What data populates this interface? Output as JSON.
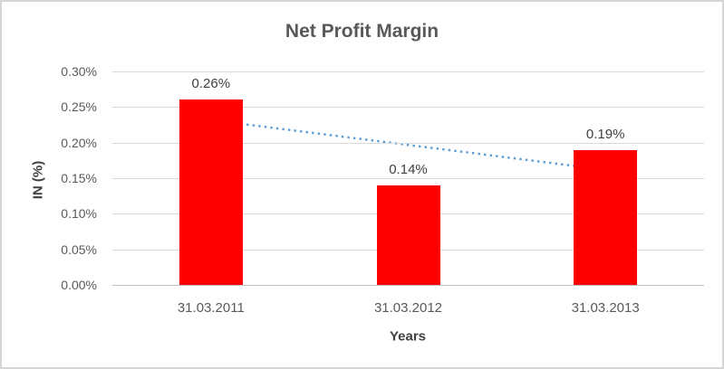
{
  "chart_data": {
    "type": "bar",
    "title": "Net Profit Margin",
    "xlabel": "Years",
    "ylabel": "IN (%)",
    "categories": [
      "31.03.2011",
      "31.03.2012",
      "31.03.2013"
    ],
    "values": [
      0.26,
      0.14,
      0.19
    ],
    "data_labels": [
      "0.26%",
      "0.14%",
      "0.19%"
    ],
    "ylim": [
      0,
      0.3
    ],
    "ytick_step": 0.05,
    "yticks": [
      0.3,
      0.25,
      0.2,
      0.15,
      0.1,
      0.05,
      0.0
    ],
    "ytick_labels": [
      "0.30%",
      "0.25%",
      "0.20%",
      "0.15%",
      "0.10%",
      "0.05%",
      "0.00%"
    ],
    "grid": true,
    "legend": "none",
    "bar_color": "#FF0000",
    "gridline_color": "#D9D9D9",
    "axis_line_color": "#BFBFBF",
    "title_color": "#595959",
    "tick_color": "#595959",
    "data_label_color": "#404040",
    "trendline": {
      "style": "dotted",
      "color": "#5B9BD5",
      "start_value": 0.2317,
      "end_value": 0.1617
    }
  }
}
